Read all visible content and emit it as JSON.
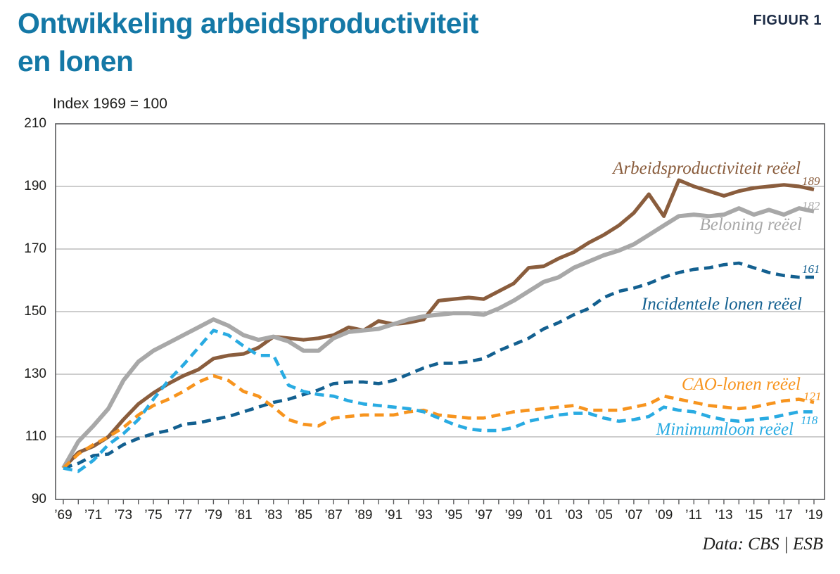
{
  "header": {
    "title_line1": "Ontwikkeling arbeidsproductiviteit",
    "title_line2": "en lonen",
    "figure_label": "FIGUUR 1",
    "subtitle": "Index 1969 = 100"
  },
  "source": "Data: CBS | ESB",
  "colors": {
    "title_accent": "#1478a6",
    "figure_label": "#1c2b45",
    "axis_text": "#1d1d1b",
    "axis_line": "#58595b",
    "gridline": "#9b9b9b",
    "background": "#ffffff"
  },
  "chart_data": {
    "type": "line",
    "title": "Ontwikkeling arbeidsproductiviteit en lonen",
    "subtitle": "Index 1969 = 100",
    "xlabel": "",
    "ylabel": "Index 1969 = 100",
    "ylim": [
      90,
      210
    ],
    "y_ticks": [
      210,
      190,
      170,
      150,
      130,
      110,
      90
    ],
    "x_range": [
      1969,
      2019
    ],
    "x_tick_labels": [
      "’69",
      "’71",
      "’73",
      "’75",
      "’77",
      "’79",
      "’81",
      "’83",
      "’85",
      "’87",
      "’89",
      "’91",
      "’93",
      "’95",
      "’97",
      "’99",
      "’01",
      "’03",
      "’05",
      "’07",
      "’09",
      "’11",
      "’13",
      "’15",
      "’17",
      "’19"
    ],
    "grid": true,
    "legend_position": "inline-right",
    "x": [
      1969,
      1970,
      1971,
      1972,
      1973,
      1974,
      1975,
      1976,
      1977,
      1978,
      1979,
      1980,
      1981,
      1982,
      1983,
      1984,
      1985,
      1986,
      1987,
      1988,
      1989,
      1990,
      1991,
      1992,
      1993,
      1994,
      1995,
      1996,
      1997,
      1998,
      1999,
      2000,
      2001,
      2002,
      2003,
      2004,
      2005,
      2006,
      2007,
      2008,
      2009,
      2010,
      2011,
      2012,
      2013,
      2014,
      2015,
      2016,
      2017,
      2018,
      2019
    ],
    "series": [
      {
        "name": "Arbeidsproductiviteit reëel",
        "color": "#8a5d3d",
        "style": "solid",
        "end_label": "189",
        "values": [
          100,
          105,
          107,
          110,
          115.5,
          120.5,
          124,
          127,
          129.5,
          131.5,
          135,
          136,
          136.5,
          138.5,
          142,
          141.5,
          141,
          141.5,
          142.5,
          145,
          144,
          147,
          146,
          146.5,
          147.5,
          153.5,
          154,
          154.5,
          154,
          156.5,
          159,
          164,
          164.5,
          167,
          169,
          172,
          174.5,
          177.5,
          181.5,
          187.5,
          180.5,
          192,
          190,
          188.5,
          187,
          188.5,
          189.5,
          190,
          190.5,
          190,
          189
        ]
      },
      {
        "name": "Beloning reëel",
        "color": "#a8a8a8",
        "style": "solid",
        "end_label": "182",
        "values": [
          100,
          108.5,
          113.5,
          119,
          128,
          134,
          137.5,
          140,
          142.5,
          145,
          147.5,
          145.5,
          142.5,
          141,
          142,
          140.5,
          137.5,
          137.5,
          141.5,
          143.5,
          144,
          144.5,
          146,
          147.5,
          148.5,
          149,
          149.5,
          149.5,
          149,
          151,
          153.5,
          156.5,
          159.5,
          161,
          164,
          166,
          168,
          169.5,
          171.5,
          174.5,
          177.5,
          180.5,
          181,
          180.5,
          181,
          183,
          181,
          182.5,
          181,
          183,
          182
        ]
      },
      {
        "name": "Incidentele lonen reëel",
        "color": "#136090",
        "style": "dashed",
        "end_label": "161",
        "values": [
          100,
          101.5,
          104,
          104.5,
          107.5,
          109.5,
          111,
          112,
          114,
          114.5,
          115.5,
          116.5,
          118,
          119.5,
          121,
          122,
          123.5,
          125,
          127,
          127.5,
          127.5,
          127,
          128,
          130,
          132,
          133.5,
          133.5,
          134,
          135,
          137.5,
          139.5,
          141.5,
          144.5,
          146.5,
          149,
          151,
          154.5,
          156.5,
          157.5,
          159,
          161,
          162.5,
          163.5,
          164,
          165,
          165.5,
          164,
          162.5,
          161.5,
          161,
          161
        ]
      },
      {
        "name": "CAO-lonen reëel",
        "color": "#f7941e",
        "style": "dashed",
        "end_label": "121",
        "values": [
          100,
          104.5,
          107.5,
          110,
          113,
          117,
          120,
          122,
          124.5,
          127.5,
          129.5,
          128,
          124.5,
          123,
          119.5,
          115.5,
          114,
          113.5,
          116,
          116.5,
          117,
          117,
          117,
          118,
          118.5,
          117,
          116.5,
          116,
          116,
          117,
          118,
          118.5,
          119,
          119.5,
          120,
          118.5,
          118.5,
          118.5,
          119.5,
          120.5,
          123,
          122,
          121,
          120,
          119.5,
          119,
          119.5,
          120.5,
          121.5,
          122,
          121
        ]
      },
      {
        "name": "Minimumloon reëel",
        "color": "#29abe2",
        "style": "dashed",
        "end_label": "118",
        "values": [
          100,
          99,
          102.5,
          107.5,
          111,
          115.5,
          122,
          128,
          133,
          138.5,
          144,
          142.5,
          139,
          136,
          136,
          126.5,
          124.5,
          123.5,
          123,
          121.5,
          120.5,
          120,
          119.5,
          119,
          118,
          116,
          114,
          112.5,
          112,
          112,
          113,
          115,
          116,
          117,
          117.5,
          117.5,
          116,
          115,
          115.5,
          116.5,
          119.5,
          118.5,
          118,
          116.5,
          115.5,
          115,
          115.5,
          116,
          117,
          118,
          118
        ]
      }
    ]
  }
}
